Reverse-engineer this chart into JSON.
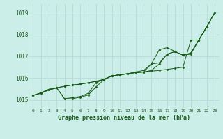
{
  "title": "Graphe pression niveau de la mer (hPa)",
  "bg_color": "#cceee8",
  "grid_color": "#b8ddd8",
  "line_color": "#1a5c1a",
  "marker_color": "#1a5c1a",
  "xlim": [
    -0.5,
    23.5
  ],
  "ylim": [
    1014.6,
    1019.4
  ],
  "yticks": [
    1015,
    1016,
    1017,
    1018,
    1019
  ],
  "xticks": [
    0,
    1,
    2,
    3,
    4,
    5,
    6,
    7,
    8,
    9,
    10,
    11,
    12,
    13,
    14,
    15,
    16,
    17,
    18,
    19,
    20,
    21,
    22,
    23
  ],
  "series": [
    [
      1015.2,
      1015.3,
      1015.45,
      1015.55,
      1015.62,
      1015.68,
      1015.72,
      1015.78,
      1015.85,
      1015.92,
      1016.1,
      1016.15,
      1016.2,
      1016.25,
      1016.28,
      1016.32,
      1016.35,
      1016.4,
      1016.45,
      1016.5,
      1017.75,
      1017.75,
      1018.35,
      1019.0
    ],
    [
      1015.2,
      1015.3,
      1015.45,
      1015.55,
      1015.62,
      1015.68,
      1015.72,
      1015.78,
      1015.85,
      1015.95,
      1016.1,
      1016.15,
      1016.2,
      1016.25,
      1016.28,
      1016.35,
      1016.65,
      1017.1,
      1017.22,
      1017.05,
      1017.15,
      1017.75,
      1018.35,
      1019.0
    ],
    [
      1015.2,
      1015.32,
      1015.48,
      1015.55,
      1015.05,
      1015.05,
      1015.12,
      1015.22,
      1015.6,
      1015.92,
      1016.1,
      1016.15,
      1016.2,
      1016.25,
      1016.28,
      1016.65,
      1016.7,
      1017.1,
      1017.22,
      1017.05,
      1017.15,
      1017.75,
      1018.35,
      1019.0
    ],
    [
      1015.2,
      1015.32,
      1015.48,
      1015.55,
      1015.05,
      1015.1,
      1015.15,
      1015.3,
      1015.78,
      1015.95,
      1016.1,
      1016.15,
      1016.2,
      1016.28,
      1016.35,
      1016.65,
      1017.3,
      1017.4,
      1017.22,
      1017.05,
      1017.1,
      1017.75,
      1018.35,
      1019.0
    ]
  ]
}
